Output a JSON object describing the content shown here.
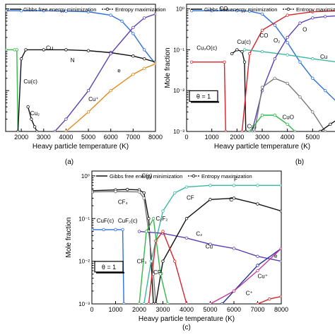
{
  "figure": {
    "panel_labels": [
      "(a)",
      "(b)",
      "(c)"
    ]
  },
  "colors": {
    "black": "#111111",
    "blue": "#2f6fd8",
    "green": "#33b84a",
    "red": "#d8232a",
    "purple": "#5b3fb0",
    "orange": "#e08a1e",
    "teal": "#39b8a0",
    "gray": "#777777",
    "navy": "#1f2f9a",
    "magenta": "#c23a9a"
  },
  "chart_data": [
    {
      "panel": "(a)",
      "type": "line",
      "xlabel": "Heavy particle temperature (K)",
      "ylabel": "",
      "x_ticks": [
        "2000",
        "3000",
        "4000",
        "5000",
        "6000",
        "7000",
        "8000"
      ],
      "xlim": [
        1300,
        8000
      ],
      "ylim": [
        0.001,
        1.3
      ],
      "yscale": "log",
      "legend": {
        "position": "top",
        "entries": [
          "Gibbs free energy minimization",
          "Entropy maximization"
        ]
      },
      "annotations": [
        {
          "text": "₂",
          "x": 1350,
          "y": 0.9
        },
        {
          "text": "Cu",
          "x": 3100,
          "y": 0.1
        },
        {
          "text": "Cu(c)",
          "x": 2100,
          "y": 0.015
        },
        {
          "text": "Cu₂",
          "x": 2400,
          "y": 0.0025
        },
        {
          "text": "N",
          "x": 4200,
          "y": 0.05
        },
        {
          "text": "e",
          "x": 6300,
          "y": 0.028
        },
        {
          "text": "Cu⁺",
          "x": 5000,
          "y": 0.0055
        }
      ],
      "series": [
        {
          "color": "blue",
          "x": [
            1300,
            2000,
            3000,
            4000,
            5000,
            6000,
            6500,
            7000,
            7500,
            8000
          ],
          "y": [
            0.9,
            0.9,
            0.9,
            0.88,
            0.85,
            0.7,
            0.5,
            0.25,
            0.1,
            0.045
          ]
        },
        {
          "color": "green",
          "x": [
            1300,
            1700,
            1800,
            1850
          ],
          "y": [
            0.1,
            0.1,
            0.1,
            0.001
          ]
        },
        {
          "color": "black",
          "x": [
            1850,
            2000,
            2200,
            3000,
            4000,
            5000,
            6000,
            7000,
            7500,
            8000
          ],
          "y": [
            0.001,
            0.06,
            0.1,
            0.1,
            0.1,
            0.095,
            0.085,
            0.07,
            0.06,
            0.05
          ]
        },
        {
          "color": "purple",
          "x": [
            3500,
            4000,
            5000,
            6000,
            7000,
            7500,
            8000
          ],
          "y": [
            0.001,
            0.002,
            0.01,
            0.08,
            0.35,
            0.6,
            0.75
          ]
        },
        {
          "color": "orange",
          "x": [
            4000,
            5000,
            6000,
            7000,
            7500,
            8000
          ],
          "y": [
            0.001,
            0.003,
            0.01,
            0.025,
            0.035,
            0.045
          ]
        },
        {
          "color": "black",
          "x": [
            2300,
            2450,
            2600,
            2700
          ],
          "y": [
            0.004,
            0.002,
            0.0013,
            0.001
          ]
        }
      ]
    },
    {
      "panel": "(b)",
      "type": "line",
      "xlabel": "Heavy particle temperature (K)",
      "ylabel": "Mole fraction",
      "x_ticks": [
        "0",
        "1000",
        "2000",
        "3000",
        "4000",
        "5000",
        "6"
      ],
      "xlim": [
        0,
        6000
      ],
      "ylim": [
        0.001,
        1.3
      ],
      "yscale": "log",
      "y_ticks": [
        "10⁰",
        "10⁻¹",
        "10⁻²",
        "10⁻³"
      ],
      "legend": {
        "position": "top",
        "entries": [
          "Gibbs free energy minimization",
          "Entropy maximization"
        ]
      },
      "theta_label": "θ = 1",
      "annotations": [
        {
          "text": "CO₂",
          "x": 1300,
          "y": 0.9
        },
        {
          "text": "Cu(c)",
          "x": 2000,
          "y": 0.14
        },
        {
          "text": "Cu₂O(c)",
          "x": 400,
          "y": 0.1
        },
        {
          "text": "CO",
          "x": 2900,
          "y": 0.2
        },
        {
          "text": "O₂",
          "x": 3450,
          "y": 0.15
        },
        {
          "text": "O",
          "x": 4600,
          "y": 0.28
        },
        {
          "text": "Cu",
          "x": 5300,
          "y": 0.06
        },
        {
          "text": "CuO",
          "x": 3800,
          "y": 0.002
        },
        {
          "text": "Cu₂",
          "x": 2400,
          "y": 0.0012
        }
      ],
      "series": [
        {
          "color": "blue",
          "x": [
            200,
            1000,
            2000,
            2500,
            3000,
            3500,
            4000,
            4500,
            5000,
            5500,
            6000
          ],
          "y": [
            0.9,
            0.9,
            0.9,
            0.88,
            0.75,
            0.4,
            0.15,
            0.05,
            0.02,
            0.01,
            0.005
          ]
        },
        {
          "color": "red",
          "x": [
            200,
            1500,
            1550
          ],
          "y": [
            0.05,
            0.05,
            0.001
          ]
        },
        {
          "color": "black",
          "x": [
            1800,
            2000,
            2200,
            2300,
            2350
          ],
          "y": [
            0.08,
            0.1,
            0.09,
            0.05,
            0.001
          ]
        },
        {
          "color": "red",
          "x": [
            2200,
            2500,
            3000,
            4000,
            5000,
            6000
          ],
          "y": [
            0.001,
            0.08,
            0.3,
            0.7,
            0.85,
            0.9
          ]
        },
        {
          "color": "teal",
          "x": [
            2300,
            3000,
            4000,
            5000,
            6000
          ],
          "y": [
            0.1,
            0.09,
            0.075,
            0.06,
            0.05
          ]
        },
        {
          "color": "purple",
          "x": [
            2600,
            3000,
            3500,
            4000,
            4500,
            5000,
            5500,
            6000
          ],
          "y": [
            0.001,
            0.01,
            0.06,
            0.2,
            0.45,
            0.6,
            0.65,
            0.68
          ]
        },
        {
          "color": "gray",
          "x": [
            2700,
            3000,
            3500,
            4000,
            4500,
            5000,
            5500
          ],
          "y": [
            0.001,
            0.012,
            0.02,
            0.015,
            0.007,
            0.003,
            0.001
          ]
        },
        {
          "color": "green",
          "x": [
            2500,
            3000,
            3500,
            4000,
            4300
          ],
          "y": [
            0.001,
            0.0025,
            0.0025,
            0.0015,
            0.001
          ]
        },
        {
          "color": "black",
          "x": [
            5300,
            5700,
            6000
          ],
          "y": [
            0.001,
            0.0015,
            0.002
          ]
        }
      ]
    },
    {
      "panel": "(c)",
      "type": "line",
      "xlabel": "Heavy particle temperature (K)",
      "ylabel": "Mole fraction",
      "x_ticks": [
        "0",
        "1000",
        "2000",
        "3000",
        "4000",
        "5000",
        "6000",
        "7000",
        "8000"
      ],
      "xlim": [
        0,
        8000
      ],
      "ylim": [
        0.001,
        1.3
      ],
      "yscale": "log",
      "y_ticks": [
        "10⁰",
        "10⁻¹",
        "10⁻²",
        "10⁻³"
      ],
      "legend": {
        "position": "top",
        "entries": [
          "Gibbs free energy minimization",
          "Entropy maximization"
        ]
      },
      "theta_label": "θ = 1",
      "annotations": [
        {
          "text": "C(c)",
          "x": 2100,
          "y": 0.9
        },
        {
          "text": "CF₄",
          "x": 1100,
          "y": 0.22
        },
        {
          "text": "CuF(c)",
          "x": 200,
          "y": 0.08
        },
        {
          "text": "CuF₂(c)",
          "x": 1100,
          "y": 0.08
        },
        {
          "text": "C₂F₂",
          "x": 2700,
          "y": 0.09
        },
        {
          "text": "CF",
          "x": 4000,
          "y": 0.28
        },
        {
          "text": "F",
          "x": 6000,
          "y": 0.75
        },
        {
          "text": "C",
          "x": 5800,
          "y": 0.25
        },
        {
          "text": "C₂",
          "x": 4400,
          "y": 0.04
        },
        {
          "text": "Cu",
          "x": 4800,
          "y": 0.02
        },
        {
          "text": "CF₃",
          "x": 1900,
          "y": 0.009
        },
        {
          "text": "CF₂",
          "x": 2600,
          "y": 0.005
        },
        {
          "text": "e",
          "x": 7700,
          "y": 0.012
        },
        {
          "text": "Cu⁺",
          "x": 7000,
          "y": 0.004
        },
        {
          "text": "C⁺",
          "x": 6500,
          "y": 0.0016
        }
      ],
      "series": [
        {
          "color": "black",
          "x": [
            0,
            1000,
            1500,
            2000,
            2200,
            2400,
            2600
          ],
          "y": [
            0.45,
            0.47,
            0.48,
            0.47,
            0.4,
            0.1,
            0.001
          ]
        },
        {
          "color": "gray",
          "x": [
            0,
            1000,
            2000,
            2200,
            2400,
            2600,
            2700
          ],
          "y": [
            0.42,
            0.43,
            0.42,
            0.3,
            0.05,
            0.005,
            0.001
          ]
        },
        {
          "color": "teal",
          "x": [
            2200,
            2500,
            3000,
            3500,
            4000,
            5000,
            6000,
            7000,
            8000
          ],
          "y": [
            0.001,
            0.01,
            0.15,
            0.4,
            0.55,
            0.6,
            0.6,
            0.6,
            0.6
          ]
        },
        {
          "color": "blue",
          "x": [
            0,
            500,
            1000,
            1300,
            1350
          ],
          "y": [
            0.055,
            0.055,
            0.055,
            0.055,
            0.001
          ]
        },
        {
          "color": "purple",
          "x": [
            2000,
            3000,
            4000,
            5000,
            6000,
            7000,
            8000
          ],
          "y": [
            0.05,
            0.045,
            0.035,
            0.025,
            0.02,
            0.013,
            0.01
          ]
        },
        {
          "color": "black",
          "x": [
            2700,
            3000,
            4000,
            5000,
            6000,
            7000,
            8000
          ],
          "y": [
            0.001,
            0.01,
            0.1,
            0.28,
            0.3,
            0.22,
            0.15
          ]
        },
        {
          "color": "red",
          "x": [
            2400,
            2700,
            3000,
            3500,
            4000
          ],
          "y": [
            0.001,
            0.03,
            0.05,
            0.01,
            0.001
          ]
        },
        {
          "color": "green",
          "x": [
            2000,
            2300,
            2600,
            2900,
            3200
          ],
          "y": [
            0.001,
            0.05,
            0.1,
            0.005,
            0.001
          ]
        },
        {
          "color": "navy",
          "x": [
            5500,
            6000,
            7000,
            8000
          ],
          "y": [
            0.001,
            0.002,
            0.008,
            0.02
          ]
        },
        {
          "color": "magenta",
          "x": [
            5000,
            6000,
            7000,
            8000
          ],
          "y": [
            0.001,
            0.002,
            0.006,
            0.02
          ]
        },
        {
          "color": "red",
          "x": [
            7000,
            7500,
            8000
          ],
          "y": [
            0.001,
            0.0013,
            0.0015
          ]
        }
      ]
    }
  ]
}
